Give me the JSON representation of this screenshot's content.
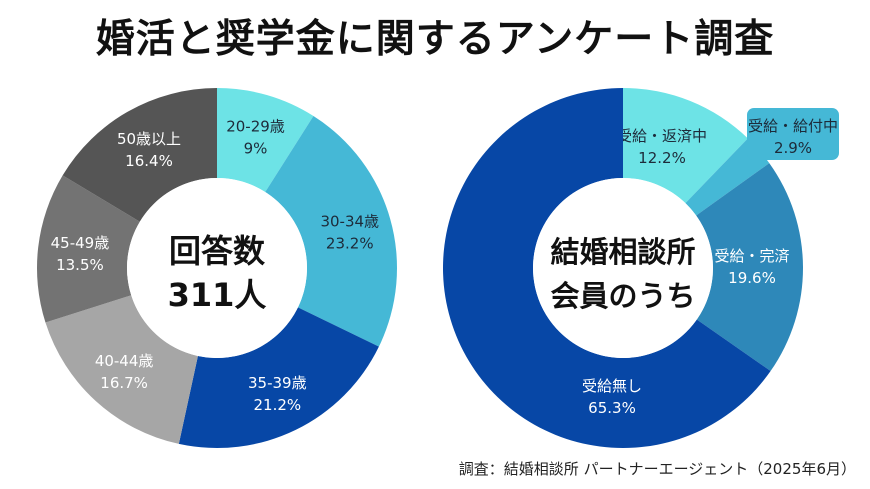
{
  "title": "婚活と奨学金に関するアンケート調査",
  "footer": "調査：結婚相談所 パートナーエージェント（2025年6月）",
  "chart_data": [
    {
      "type": "pie",
      "donut": true,
      "center_label": [
        "回答数",
        "311人"
      ],
      "categories": [
        "20-29歳",
        "30-34歳",
        "35-39歳",
        "40-44歳",
        "45-49歳",
        "50歳以上"
      ],
      "values": [
        9,
        23.2,
        21.2,
        16.7,
        13.5,
        16.4
      ],
      "value_labels": [
        "9%",
        "23.2%",
        "21.2%",
        "16.7%",
        "13.5%",
        "16.4%"
      ],
      "colors": [
        "#6de3e6",
        "#45b8d6",
        "#0747a6",
        "#a6a6a6",
        "#737373",
        "#555555"
      ]
    },
    {
      "type": "pie",
      "donut": true,
      "center_label": [
        "結婚相談所",
        "会員のうち"
      ],
      "categories": [
        "受給・返済中",
        "受給・給付中",
        "受給・完済",
        "受給無し"
      ],
      "values": [
        12.2,
        2.9,
        19.6,
        65.3
      ],
      "value_labels": [
        "12.2%",
        "2.9%",
        "19.6%",
        "65.3%"
      ],
      "colors": [
        "#6de3e6",
        "#45b8d6",
        "#2e88b9",
        "#0747a6"
      ]
    }
  ]
}
